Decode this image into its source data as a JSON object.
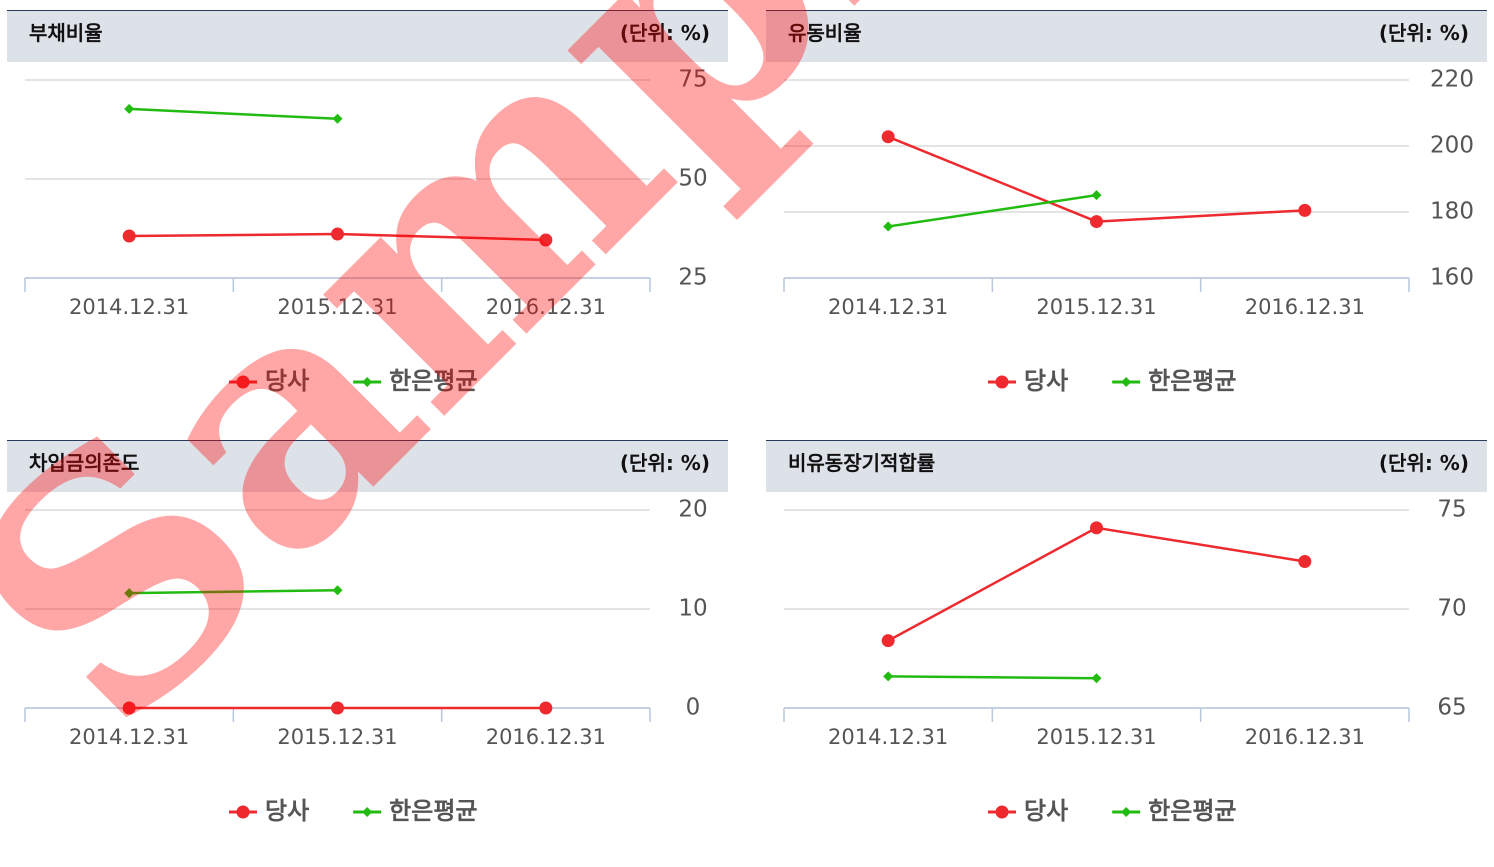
{
  "chart_data": [
    {
      "type": "line",
      "title": "부채비율",
      "unit_label": "(단위: %)",
      "categories": [
        "2014.12.31",
        "2015.12.31",
        "2016.12.31"
      ],
      "series": [
        {
          "name": "당사",
          "color": "#ee2a2e",
          "values": [
            35.6,
            36.1,
            34.6
          ]
        },
        {
          "name": "한은평균",
          "color": "#22bb11",
          "values": [
            67.7,
            65.2,
            null
          ]
        }
      ],
      "ylim": [
        25,
        75
      ],
      "yticks": [
        25,
        50,
        75
      ],
      "grid": true
    },
    {
      "type": "line",
      "title": "유동비율",
      "unit_label": "(단위: %)",
      "categories": [
        "2014.12.31",
        "2015.12.31",
        "2016.12.31"
      ],
      "series": [
        {
          "name": "당사",
          "color": "#ee2a2e",
          "values": [
            202.8,
            177.1,
            180.5
          ]
        },
        {
          "name": "한은평균",
          "color": "#22bb11",
          "values": [
            175.6,
            185.1,
            null
          ]
        }
      ],
      "ylim": [
        160,
        220
      ],
      "yticks": [
        160,
        180,
        200,
        220
      ],
      "grid": true
    },
    {
      "type": "line",
      "title": "차입금의존도",
      "unit_label": "(단위: %)",
      "categories": [
        "2014.12.31",
        "2015.12.31",
        "2016.12.31"
      ],
      "series": [
        {
          "name": "당사",
          "color": "#ee2a2e",
          "values": [
            0,
            0,
            0
          ]
        },
        {
          "name": "한은평균",
          "color": "#22bb11",
          "values": [
            11.6,
            11.9,
            null
          ]
        }
      ],
      "ylim": [
        0,
        20
      ],
      "yticks": [
        0,
        10,
        20
      ],
      "grid": true
    },
    {
      "type": "line",
      "title": "비유동장기적합률",
      "unit_label": "(단위: %)",
      "categories": [
        "2014.12.31",
        "2015.12.31",
        "2016.12.31"
      ],
      "series": [
        {
          "name": "당사",
          "color": "#ee2a2e",
          "values": [
            68.4,
            74.1,
            72.4
          ]
        },
        {
          "name": "한은평균",
          "color": "#22bb11",
          "values": [
            66.6,
            66.5,
            null
          ]
        }
      ],
      "ylim": [
        65,
        75
      ],
      "yticks": [
        65,
        70,
        75
      ],
      "grid": true
    }
  ],
  "watermark": "Sample"
}
